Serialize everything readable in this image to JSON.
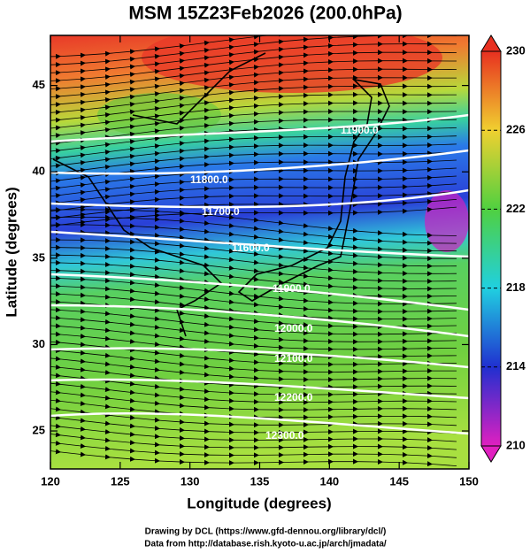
{
  "title": "MSM 15Z23Feb2026 (200.0hPa)",
  "x_axis": {
    "label": "Longitude (degrees)",
    "lim": [
      120,
      150
    ],
    "ticks": [
      120,
      125,
      130,
      135,
      140,
      145,
      150
    ]
  },
  "y_axis": {
    "label": "Latitude  (degrees)",
    "lim": [
      22.8,
      47.9
    ],
    "ticks": [
      25,
      30,
      35,
      40,
      45
    ]
  },
  "colorbar": {
    "lim": [
      210,
      230
    ],
    "ticks": [
      210,
      214,
      218,
      222,
      226,
      230
    ]
  },
  "contour_labels": [
    "11900.0",
    "11800.0",
    "11700.0",
    "11600.0",
    "11900.0",
    "12000.0",
    "12100.0",
    "12200.0",
    "12300.0"
  ],
  "credits": [
    "Drawing by DCL (https://www.gfd-dennou.org/library/dcl/)",
    "Data from http://database.rish.kyoto-u.ac.jp/arch/jmadata/"
  ]
}
